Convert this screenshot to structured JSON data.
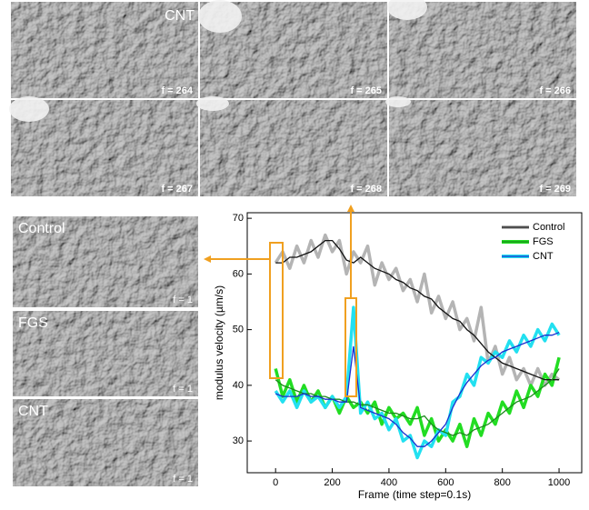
{
  "top_label": "CNT",
  "top_frames": [
    "f = 264",
    "f = 265",
    "f = 266",
    "f = 267",
    "f = 268",
    "f = 269"
  ],
  "side_panels": [
    {
      "title": "Control",
      "frame": "f = 1"
    },
    {
      "title": "FGS",
      "frame": "f = 1"
    },
    {
      "title": "CNT",
      "frame": "f = 1"
    }
  ],
  "chart_data": {
    "type": "line",
    "x_label": "Frame (time step=0.1s)",
    "y_label": "modulus velocity (µm/s)",
    "x": [
      0,
      25,
      50,
      75,
      100,
      125,
      150,
      175,
      200,
      225,
      250,
      275,
      300,
      325,
      350,
      375,
      400,
      425,
      450,
      475,
      500,
      525,
      550,
      575,
      600,
      625,
      650,
      675,
      700,
      725,
      750,
      775,
      800,
      825,
      850,
      875,
      900,
      925,
      950,
      975,
      1000
    ],
    "series": [
      {
        "name": "Control",
        "color": "#111111",
        "raw_color": "#b4b4b4",
        "values": [
          62,
          64,
          61,
          65,
          62,
          66,
          63,
          67,
          64,
          66,
          60,
          64,
          62,
          65,
          58,
          62,
          59,
          61,
          57,
          59,
          55,
          60,
          53,
          56,
          52,
          55,
          50,
          52,
          48,
          54,
          44,
          47,
          42,
          45,
          41,
          43,
          40,
          43,
          40,
          42,
          41
        ],
        "smoothed": [
          62,
          62,
          63,
          63,
          63.5,
          64,
          65,
          66,
          66,
          64.5,
          62.5,
          62,
          63,
          62,
          61,
          60.5,
          60,
          59,
          58.5,
          57.5,
          57,
          56,
          55.5,
          54,
          53,
          52,
          51.5,
          50,
          49,
          47.5,
          46,
          45,
          44,
          43.5,
          43,
          42.5,
          42,
          41.5,
          41,
          41,
          41
        ]
      },
      {
        "name": "FGS",
        "color": "#1a8a1a",
        "raw_color": "#22dd22",
        "values": [
          43,
          38,
          41,
          37,
          40,
          37,
          39,
          36,
          38,
          35,
          38,
          36,
          37,
          35,
          37,
          33,
          36,
          34,
          35,
          33,
          36,
          31,
          34,
          30,
          32,
          30,
          33,
          29,
          34,
          31,
          35,
          33,
          37,
          35,
          39,
          36,
          40,
          38,
          42,
          40,
          45
        ],
        "smoothed": [
          41,
          40,
          39.5,
          39,
          38.5,
          38.5,
          38,
          38,
          37.5,
          37.5,
          37,
          37,
          36.5,
          36.5,
          36,
          35.5,
          35,
          35,
          34.5,
          34,
          34,
          34.5,
          33,
          32,
          31.5,
          31,
          31.5,
          31,
          32,
          32.5,
          33,
          34,
          35,
          36,
          37,
          37.5,
          38,
          39,
          40,
          41,
          43
        ]
      },
      {
        "name": "CNT",
        "color": "#1a2fd0",
        "raw_color": "#22e0f0",
        "values": [
          39,
          37,
          39,
          36,
          39,
          37,
          38,
          36,
          38,
          36,
          38,
          54,
          35,
          37,
          34,
          35,
          32,
          34,
          30,
          31,
          27,
          30,
          29,
          32,
          31,
          37,
          38,
          42,
          40,
          45,
          44,
          46,
          45,
          48,
          46,
          49,
          47,
          50,
          48,
          51,
          49
        ],
        "smoothed": [
          38.5,
          38,
          38,
          38,
          38.5,
          38,
          38,
          37.5,
          37.5,
          37,
          37,
          47,
          36,
          35.5,
          35,
          34.5,
          34,
          33,
          31.5,
          30.5,
          29,
          29,
          30,
          31.5,
          33,
          36,
          38.5,
          40.5,
          42,
          43.5,
          44.5,
          45,
          46,
          46.5,
          47,
          47.5,
          48,
          48.5,
          49,
          49,
          49.5
        ]
      }
    ],
    "xlim": [
      -100,
      1080
    ],
    "ylim": [
      24.3,
      71
    ],
    "xticks": [
      0,
      200,
      400,
      600,
      800,
      1000
    ],
    "yticks": [
      30,
      40,
      50,
      60,
      70
    ],
    "legend": "upper right"
  }
}
